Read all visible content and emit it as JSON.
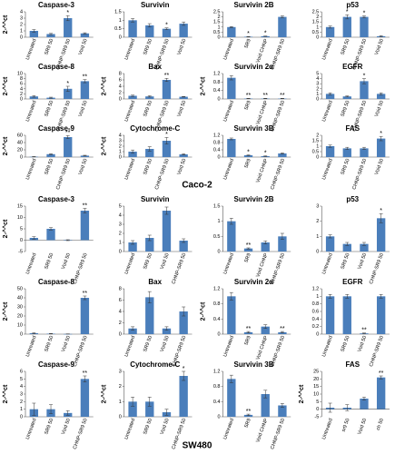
{
  "sections": [
    "Caco-2",
    "SW480"
  ],
  "chart_data": [
    {
      "type": "bar",
      "title": "Caspase-3",
      "ylabel": "2-^^ct",
      "categories": [
        "Untreated",
        "SR9 50",
        "CHNP-SR9 50",
        "Void 50"
      ],
      "values": [
        1,
        0.5,
        3,
        0.6
      ],
      "errors": [
        0.2,
        0.1,
        0.4,
        0.1
      ],
      "ylim": [
        0,
        4
      ],
      "yticks": [
        0,
        1,
        2,
        3,
        4
      ],
      "color": "#4a7ebb",
      "annotations": [
        {
          "index": 2,
          "text": "*"
        }
      ]
    },
    {
      "type": "bar",
      "title": "Survivin",
      "categories": [
        "Untreated",
        "SR9 50",
        "CHNP-SR9 50",
        "Void 50"
      ],
      "values": [
        1,
        0.7,
        0.5,
        0.8
      ],
      "errors": [
        0.1,
        0.1,
        0.05,
        0.1
      ],
      "ylim": [
        0,
        1.5
      ],
      "yticks": [
        0,
        0.5,
        1,
        1.5
      ],
      "color": "#4a7ebb",
      "annotations": [
        {
          "index": 2,
          "text": "*"
        }
      ]
    },
    {
      "type": "bar",
      "title": "Survivin 2B",
      "categories": [
        "Untreated",
        "SR9",
        "Void CHNP",
        "CHNP-SR9 50"
      ],
      "values": [
        1,
        0.05,
        0.1,
        2
      ],
      "errors": [
        0.05,
        0.02,
        0.02,
        0.1
      ],
      "ylim": [
        0,
        2.5
      ],
      "yticks": [
        0,
        0.5,
        1,
        1.5,
        2,
        2.5
      ],
      "color": "#4a7ebb",
      "annotations": [
        {
          "index": 1,
          "text": "*"
        },
        {
          "index": 2,
          "text": "*"
        }
      ]
    },
    {
      "type": "bar",
      "title": "p53",
      "categories": [
        "Untreated",
        "SR9 50",
        "CHNP-SR9 50",
        "Void 50"
      ],
      "values": [
        1,
        2,
        2,
        0.1
      ],
      "errors": [
        0.1,
        0.2,
        0.1,
        0.05
      ],
      "ylim": [
        0,
        2.5
      ],
      "yticks": [
        0,
        0.5,
        1,
        1.5,
        2,
        2.5
      ],
      "color": "#4a7ebb",
      "annotations": [
        {
          "index": 1,
          "text": "*"
        },
        {
          "index": 2,
          "text": "*"
        }
      ]
    },
    {
      "type": "bar",
      "title": "Caspase-8",
      "ylabel": "2-^^ct",
      "categories": [
        "Untreated",
        "SR9 50",
        "CHNP-SR9 50",
        "Void 50"
      ],
      "values": [
        1,
        0.5,
        4,
        7
      ],
      "errors": [
        0.3,
        0.2,
        1,
        0.6
      ],
      "ylim": [
        0,
        10
      ],
      "yticks": [
        0,
        2,
        4,
        6,
        8,
        10
      ],
      "color": "#4a7ebb",
      "annotations": [
        {
          "index": 2,
          "text": "*"
        },
        {
          "index": 3,
          "text": "**"
        }
      ]
    },
    {
      "type": "bar",
      "title": "Bax",
      "ylabel": "2-^^ct",
      "categories": [
        "Untreated",
        "SR9 50",
        "CHNP-SR9 50",
        "Void 50"
      ],
      "values": [
        1,
        0.8,
        6,
        0.7
      ],
      "errors": [
        0.2,
        0.2,
        0.5,
        0.1
      ],
      "ylim": [
        0,
        8
      ],
      "yticks": [
        0,
        2,
        4,
        6,
        8
      ],
      "color": "#4a7ebb",
      "annotations": [
        {
          "index": 2,
          "text": "**"
        }
      ]
    },
    {
      "type": "bar",
      "title": "Survivin 2α",
      "ylabel": "2-^^ct",
      "categories": [
        "Untreated",
        "SR9",
        "Void CHNP",
        "CHNP-SR9 50"
      ],
      "values": [
        1,
        0.02,
        0.02,
        0.02
      ],
      "errors": [
        0.1,
        0.01,
        0.01,
        0.01
      ],
      "ylim": [
        0,
        1.2
      ],
      "yticks": [
        0,
        0.4,
        0.8,
        1.2
      ],
      "color": "#4a7ebb",
      "annotations": [
        {
          "index": 1,
          "text": "**"
        },
        {
          "index": 2,
          "text": "**"
        },
        {
          "index": 3,
          "text": "**"
        }
      ]
    },
    {
      "type": "bar",
      "title": "EGFR",
      "categories": [
        "Untreated",
        "SR9 50",
        "CHNP-SR9 50",
        "Void 50"
      ],
      "values": [
        1,
        0.5,
        3.5,
        1
      ],
      "errors": [
        0.2,
        0.1,
        0.5,
        0.2
      ],
      "ylim": [
        0,
        5
      ],
      "yticks": [
        0,
        1,
        2,
        3,
        4,
        5
      ],
      "color": "#4a7ebb",
      "annotations": [
        {
          "index": 2,
          "text": "*"
        }
      ]
    },
    {
      "type": "bar",
      "title": "Caspase-9",
      "ylabel": "2-^^ct",
      "categories": [
        "Untreated",
        "SR9 50",
        "CHNP-SR9 50",
        "Void 50"
      ],
      "values": [
        1,
        8,
        55,
        4
      ],
      "errors": [
        0.5,
        1,
        4,
        1
      ],
      "ylim": [
        0,
        60
      ],
      "yticks": [
        0,
        20,
        40,
        60
      ],
      "color": "#4a7ebb",
      "annotations": [
        {
          "index": 2,
          "text": "**"
        }
      ]
    },
    {
      "type": "bar",
      "title": "Cytochrome-C",
      "ylabel": "2-^^ct",
      "categories": [
        "Untreated",
        "SR9 50",
        "CHNP-SR9 50",
        "Void 50"
      ],
      "values": [
        1,
        1.5,
        3,
        0.5
      ],
      "errors": [
        0.3,
        0.4,
        0.6,
        0.1
      ],
      "ylim": [
        0,
        4
      ],
      "yticks": [
        0,
        1,
        2,
        3,
        4
      ],
      "color": "#4a7ebb",
      "annotations": [
        {
          "index": 2,
          "text": "*"
        }
      ]
    },
    {
      "type": "bar",
      "title": "Survivin 3B",
      "categories": [
        "Untreated",
        "SR9",
        "Void CHNP",
        "CHNP-SR9 50"
      ],
      "values": [
        1,
        0.1,
        0.05,
        0.2
      ],
      "errors": [
        0.05,
        0.02,
        0.02,
        0.03
      ],
      "ylim": [
        0,
        1.2
      ],
      "yticks": [
        0,
        0.4,
        0.8,
        1.2
      ],
      "color": "#4a7ebb",
      "annotations": [
        {
          "index": 1,
          "text": "*"
        },
        {
          "index": 2,
          "text": "*"
        }
      ]
    },
    {
      "type": "bar",
      "title": "FAS",
      "categories": [
        "Untreated",
        "SR9 50",
        "CHNP-SR9 50",
        "Void 50"
      ],
      "values": [
        1,
        0.8,
        0.8,
        1.7
      ],
      "errors": [
        0.1,
        0.1,
        0.1,
        0.2
      ],
      "ylim": [
        0,
        2
      ],
      "yticks": [
        0,
        0.5,
        1,
        1.5,
        2
      ],
      "color": "#4a7ebb",
      "annotations": [
        {
          "index": 3,
          "text": "*"
        }
      ]
    },
    {
      "type": "bar",
      "title": "Caspase-3",
      "ylabel": "2-^^ct",
      "categories": [
        "Untreated",
        "SR9 50",
        "Void 50",
        "CHNP-SR9 50"
      ],
      "values": [
        1,
        5,
        0,
        13
      ],
      "errors": [
        0.5,
        0.5,
        0.2,
        1
      ],
      "ylim": [
        -5,
        15
      ],
      "yticks": [
        -5,
        0,
        5,
        10,
        15
      ],
      "color": "#4a7ebb",
      "annotations": [
        {
          "index": 3,
          "text": "**"
        }
      ]
    },
    {
      "type": "bar",
      "title": "Survivin",
      "categories": [
        "Untreated",
        "SR9 50",
        "Void 50",
        "CHNP-SR9 50"
      ],
      "values": [
        1,
        1.5,
        4.5,
        1.2
      ],
      "errors": [
        0.2,
        0.3,
        0.4,
        0.2
      ],
      "ylim": [
        0,
        5
      ],
      "yticks": [
        0,
        1,
        2,
        3,
        4,
        5
      ],
      "color": "#4a7ebb",
      "annotations": []
    },
    {
      "type": "bar",
      "title": "Survivin 2B",
      "categories": [
        "Untreated",
        "SR9",
        "Void CHNP",
        "CHNP-SR9 50"
      ],
      "values": [
        1,
        0.1,
        0.3,
        0.5
      ],
      "errors": [
        0.1,
        0.02,
        0.05,
        0.1
      ],
      "ylim": [
        0,
        1.5
      ],
      "yticks": [
        0,
        0.5,
        1,
        1.5
      ],
      "color": "#4a7ebb",
      "annotations": [
        {
          "index": 1,
          "text": "**"
        }
      ]
    },
    {
      "type": "bar",
      "title": "p53",
      "categories": [
        "Untreated",
        "SR9 50",
        "Void 50",
        "CHNP-SR9 50"
      ],
      "values": [
        1,
        0.5,
        0.5,
        2.2
      ],
      "errors": [
        0.1,
        0.1,
        0.1,
        0.3
      ],
      "ylim": [
        0,
        3
      ],
      "yticks": [
        0,
        1,
        2,
        3
      ],
      "color": "#4a7ebb",
      "annotations": [
        {
          "index": 3,
          "text": "*"
        }
      ]
    },
    {
      "type": "bar",
      "title": "Caspase-8",
      "ylabel": "2-^^ct",
      "categories": [
        "Untreated",
        "SR9 50",
        "Void 50",
        "CHNP-SR9 50"
      ],
      "values": [
        1,
        0.5,
        0.2,
        40
      ],
      "errors": [
        0.5,
        0.2,
        0.1,
        2
      ],
      "ylim": [
        0,
        50
      ],
      "yticks": [
        0,
        10,
        20,
        30,
        40,
        50
      ],
      "color": "#4a7ebb",
      "annotations": [
        {
          "index": 3,
          "text": "**"
        }
      ]
    },
    {
      "type": "bar",
      "title": "Bax",
      "categories": [
        "Untreated",
        "SR9 50",
        "Void 50",
        "CHNP-SR9 50"
      ],
      "values": [
        1,
        6.5,
        1,
        4
      ],
      "errors": [
        0.3,
        1,
        0.3,
        0.8
      ],
      "ylim": [
        0,
        8
      ],
      "yticks": [
        0,
        2,
        4,
        6,
        8
      ],
      "color": "#4a7ebb",
      "annotations": []
    },
    {
      "type": "bar",
      "title": "Survivin 2α",
      "ylabel": "2-^^ct",
      "categories": [
        "Untreated",
        "SR9",
        "Void CHNP",
        "CHNP-SR9 50"
      ],
      "values": [
        1,
        0.05,
        0.2,
        0.05
      ],
      "errors": [
        0.1,
        0.02,
        0.05,
        0.02
      ],
      "ylim": [
        0,
        1.2
      ],
      "yticks": [
        0,
        0.4,
        0.8,
        1.2
      ],
      "color": "#4a7ebb",
      "annotations": [
        {
          "index": 1,
          "text": "**"
        },
        {
          "index": 3,
          "text": "**"
        }
      ]
    },
    {
      "type": "bar",
      "title": "EGFR",
      "categories": [
        "Untreated",
        "SR9 50",
        "Void 50",
        "CHNP-SR9 50"
      ],
      "values": [
        1,
        1,
        0.02,
        1
      ],
      "errors": [
        0.05,
        0.05,
        0.01,
        0.05
      ],
      "ylim": [
        0,
        1.2
      ],
      "yticks": [
        0,
        0.2,
        0.4,
        0.6,
        0.8,
        1,
        1.2
      ],
      "color": "#4a7ebb",
      "annotations": [
        {
          "index": 2,
          "text": "**"
        }
      ]
    },
    {
      "type": "bar",
      "title": "Caspase-9",
      "ylabel": "2-^^ct",
      "categories": [
        "Untreated",
        "SR9 50",
        "Void 50",
        "CHNP-SR9 50"
      ],
      "values": [
        1,
        1,
        0.5,
        5
      ],
      "errors": [
        0.8,
        0.6,
        0.3,
        0.4
      ],
      "ylim": [
        0,
        6
      ],
      "yticks": [
        0,
        1,
        2,
        3,
        4,
        5,
        6
      ],
      "color": "#4a7ebb",
      "annotations": [
        {
          "index": 3,
          "text": "**"
        }
      ]
    },
    {
      "type": "bar",
      "title": "Cytochrome-C",
      "ylabel": "2-^^ct",
      "categories": [
        "Untreated",
        "SR9 50",
        "Void 50",
        "CHNP-SR9 50"
      ],
      "values": [
        1,
        1,
        0.3,
        2.7
      ],
      "errors": [
        0.3,
        0.3,
        0.2,
        0.3
      ],
      "ylim": [
        0,
        3
      ],
      "yticks": [
        0,
        1,
        2,
        3
      ],
      "color": "#4a7ebb",
      "annotations": [
        {
          "index": 3,
          "text": "*"
        }
      ]
    },
    {
      "type": "bar",
      "title": "Survivin 3B",
      "categories": [
        "Untreated",
        "SR9",
        "Void CHNP",
        "CHNP-SR9 50"
      ],
      "values": [
        1,
        0.05,
        0.6,
        0.3
      ],
      "errors": [
        0.1,
        0.02,
        0.1,
        0.05
      ],
      "ylim": [
        0,
        1.2
      ],
      "yticks": [
        0,
        0.4,
        0.8,
        1.2
      ],
      "color": "#4a7ebb",
      "annotations": [
        {
          "index": 1,
          "text": "**"
        }
      ]
    },
    {
      "type": "bar",
      "title": "FAS",
      "ylabel": "2-^^ct",
      "categories": [
        "Untreated",
        "sr9 50",
        "Void 50",
        "ch 50"
      ],
      "values": [
        1,
        1,
        7,
        21
      ],
      "errors": [
        3,
        2,
        1,
        1
      ],
      "ylim": [
        -5,
        25
      ],
      "yticks": [
        -5,
        0,
        5,
        10,
        15,
        20,
        25
      ],
      "color": "#4a7ebb",
      "annotations": [
        {
          "index": 3,
          "text": "**"
        }
      ]
    }
  ]
}
